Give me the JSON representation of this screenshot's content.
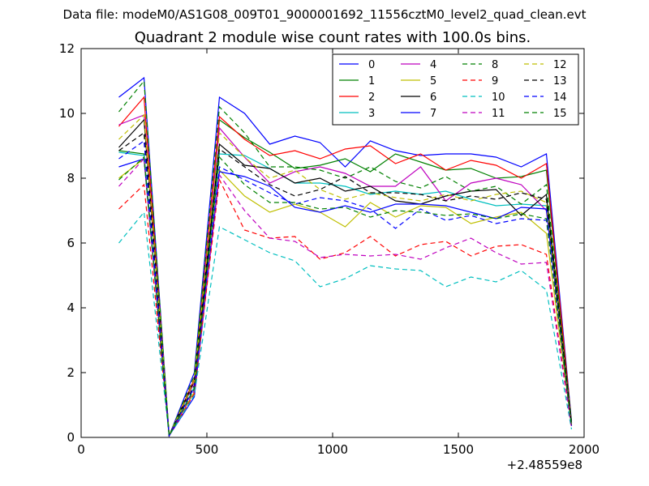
{
  "suptitle": "Data file: modeM0/AS1G08_009T01_9000001692_11556cztM0_level2_quad_clean.evt",
  "chart_data": {
    "type": "line",
    "title": "Quadrant 2 module wise count rates with 100.0s bins.",
    "xlabel": "",
    "ylabel": "",
    "x_offset_label": "+2.48559e8",
    "xlim": [
      0,
      2000
    ],
    "ylim": [
      0,
      12
    ],
    "xticks": [
      0,
      500,
      1000,
      1500,
      2000
    ],
    "yticks": [
      0,
      2,
      4,
      6,
      8,
      10,
      12
    ],
    "grid": false,
    "legend_position": "upper right",
    "legend_columns": 4,
    "x": [
      150,
      250,
      350,
      450,
      550,
      650,
      750,
      850,
      950,
      1050,
      1150,
      1250,
      1350,
      1450,
      1550,
      1650,
      1750,
      1850,
      1950
    ],
    "series": [
      {
        "name": "0",
        "color": "#0000ff",
        "dash": "solid",
        "values": [
          10.5,
          11.1,
          0.05,
          2.0,
          10.5,
          10.0,
          9.05,
          9.3,
          9.1,
          8.35,
          9.15,
          8.85,
          8.7,
          8.75,
          8.75,
          8.65,
          8.35,
          8.75,
          0.5
        ]
      },
      {
        "name": "1",
        "color": "#008000",
        "dash": "solid",
        "values": [
          8.85,
          8.75,
          0.05,
          1.7,
          9.8,
          9.25,
          8.8,
          8.3,
          8.4,
          8.6,
          8.2,
          8.75,
          8.5,
          8.25,
          8.3,
          8.0,
          8.05,
          8.25,
          0.45
        ]
      },
      {
        "name": "2",
        "color": "#ff0000",
        "dash": "solid",
        "values": [
          9.6,
          10.5,
          0.05,
          1.8,
          9.9,
          9.2,
          8.7,
          8.85,
          8.6,
          8.9,
          9.0,
          8.45,
          8.75,
          8.25,
          8.55,
          8.4,
          8.0,
          8.45,
          0.45
        ]
      },
      {
        "name": "3",
        "color": "#00bfbf",
        "dash": "solid",
        "values": [
          8.8,
          8.7,
          0.05,
          1.55,
          8.75,
          8.7,
          8.3,
          7.85,
          7.85,
          7.75,
          7.5,
          7.6,
          7.5,
          7.6,
          7.35,
          7.15,
          7.2,
          7.15,
          0.4
        ]
      },
      {
        "name": "4",
        "color": "#bf00bf",
        "dash": "solid",
        "values": [
          9.65,
          9.95,
          0.05,
          1.7,
          9.55,
          8.65,
          7.85,
          8.2,
          8.35,
          8.15,
          7.75,
          7.75,
          8.35,
          7.3,
          7.85,
          8.0,
          7.8,
          7.0,
          0.4
        ]
      },
      {
        "name": "5",
        "color": "#bfbf00",
        "dash": "solid",
        "values": [
          8.0,
          8.6,
          0.05,
          1.4,
          8.25,
          7.45,
          6.95,
          7.2,
          6.95,
          6.5,
          7.25,
          6.8,
          7.15,
          7.1,
          6.6,
          6.8,
          6.95,
          6.3,
          0.35
        ]
      },
      {
        "name": "6",
        "color": "#000000",
        "dash": "solid",
        "values": [
          8.95,
          9.8,
          0.05,
          1.75,
          9.05,
          8.4,
          8.3,
          7.85,
          8.0,
          7.6,
          7.75,
          7.3,
          7.2,
          7.45,
          7.6,
          7.65,
          6.85,
          7.5,
          0.45
        ]
      },
      {
        "name": "7",
        "color": "#0000ff",
        "dash": "solid",
        "values": [
          8.35,
          8.6,
          0.05,
          1.25,
          8.2,
          8.05,
          7.75,
          7.1,
          6.95,
          7.15,
          6.95,
          7.2,
          7.2,
          7.15,
          6.95,
          6.75,
          7.1,
          7.05,
          0.35
        ]
      },
      {
        "name": "8",
        "color": "#008000",
        "dash": "dashed",
        "values": [
          10.05,
          11.0,
          0.05,
          1.9,
          10.2,
          9.4,
          8.35,
          8.35,
          8.25,
          8.0,
          8.35,
          7.9,
          7.7,
          8.05,
          7.6,
          7.75,
          7.2,
          7.8,
          0.45
        ]
      },
      {
        "name": "9",
        "color": "#ff0000",
        "dash": "dashed",
        "values": [
          7.05,
          7.8,
          0.05,
          1.35,
          7.95,
          6.4,
          6.15,
          6.2,
          5.5,
          5.7,
          6.2,
          5.6,
          5.95,
          6.05,
          5.6,
          5.9,
          5.95,
          5.65,
          0.3
        ]
      },
      {
        "name": "10",
        "color": "#00bfbf",
        "dash": "dashed",
        "values": [
          6.0,
          6.95,
          0.05,
          1.3,
          6.5,
          6.1,
          5.7,
          5.45,
          4.65,
          4.9,
          5.3,
          5.2,
          5.15,
          4.65,
          4.95,
          4.8,
          5.15,
          4.55,
          0.25
        ]
      },
      {
        "name": "11",
        "color": "#bf00bf",
        "dash": "dashed",
        "values": [
          7.75,
          8.6,
          0.05,
          1.45,
          8.1,
          7.0,
          6.15,
          6.05,
          5.55,
          5.65,
          5.6,
          5.65,
          5.5,
          5.85,
          6.15,
          5.7,
          5.35,
          5.4,
          0.3
        ]
      },
      {
        "name": "12",
        "color": "#bfbf00",
        "dash": "dashed",
        "values": [
          9.2,
          9.95,
          0.05,
          1.75,
          9.4,
          8.65,
          8.0,
          8.25,
          7.65,
          7.35,
          7.55,
          7.4,
          7.3,
          7.5,
          7.3,
          7.5,
          7.6,
          7.25,
          0.4
        ]
      },
      {
        "name": "13",
        "color": "#000000",
        "dash": "dashed",
        "values": [
          8.85,
          9.4,
          0.05,
          1.6,
          8.9,
          8.35,
          7.8,
          7.45,
          7.65,
          8.05,
          7.55,
          7.55,
          7.5,
          7.3,
          7.45,
          7.35,
          7.55,
          7.35,
          0.4
        ]
      },
      {
        "name": "14",
        "color": "#0000ff",
        "dash": "dashed",
        "values": [
          8.6,
          9.15,
          0.05,
          1.55,
          8.35,
          7.95,
          7.55,
          7.2,
          7.4,
          7.3,
          7.05,
          6.45,
          7.05,
          6.7,
          6.85,
          6.6,
          6.75,
          6.7,
          0.35
        ]
      },
      {
        "name": "15",
        "color": "#008000",
        "dash": "dashed",
        "values": [
          7.95,
          8.65,
          0.05,
          1.5,
          8.65,
          7.8,
          7.25,
          7.25,
          7.05,
          7.1,
          6.8,
          7.0,
          6.95,
          6.85,
          6.9,
          6.75,
          6.9,
          6.75,
          0.35
        ]
      }
    ]
  }
}
